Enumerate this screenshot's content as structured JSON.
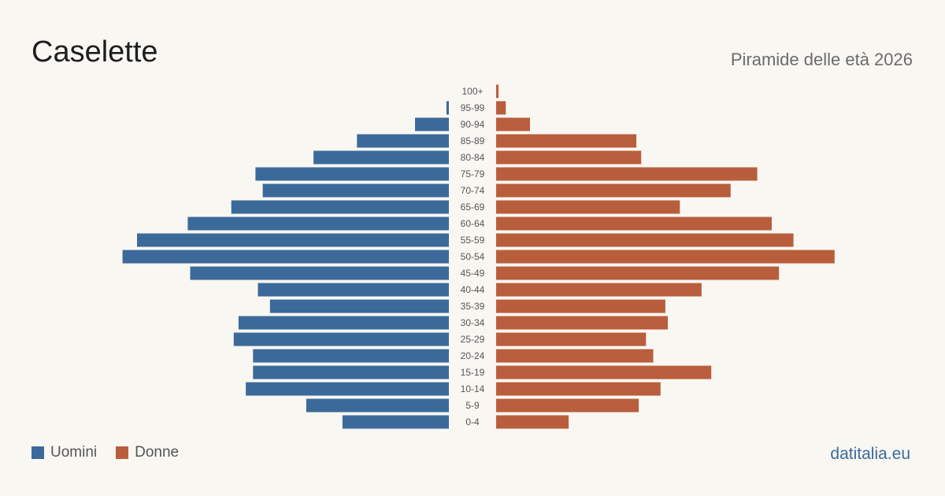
{
  "header": {
    "title": "Caselette",
    "subtitle": "Piramide delle età 2026"
  },
  "legend": {
    "men_label": "Uomini",
    "women_label": "Donne"
  },
  "footer": {
    "source": "datitalia.eu"
  },
  "colors": {
    "men": "#3b6a9a",
    "women": "#b95e3c",
    "background": "#f9f7f2"
  },
  "chart_data": {
    "type": "bar",
    "orientation": "horizontal",
    "layout": "population-pyramid",
    "categories": [
      "100+",
      "95-99",
      "90-94",
      "85-89",
      "80-84",
      "75-79",
      "70-74",
      "65-69",
      "60-64",
      "55-59",
      "50-54",
      "45-49",
      "40-44",
      "35-39",
      "30-34",
      "25-29",
      "20-24",
      "15-19",
      "10-14",
      "5-9",
      "0-4"
    ],
    "series": [
      {
        "name": "Uomini",
        "values": [
          0,
          1,
          14,
          38,
          56,
          80,
          77,
          90,
          108,
          129,
          135,
          107,
          79,
          74,
          87,
          89,
          81,
          81,
          84,
          59,
          44
        ]
      },
      {
        "name": "Donne",
        "values": [
          1,
          4,
          14,
          58,
          60,
          108,
          97,
          76,
          114,
          123,
          140,
          117,
          85,
          70,
          71,
          62,
          65,
          89,
          68,
          59,
          30
        ]
      }
    ],
    "grid": false,
    "legend_position": "bottom-left"
  }
}
